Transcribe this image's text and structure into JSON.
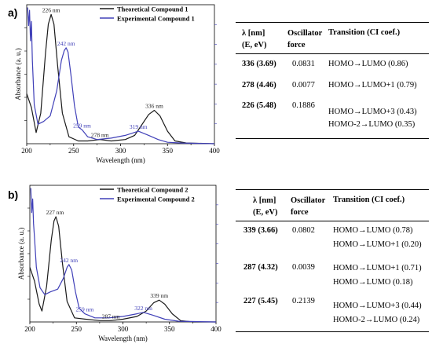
{
  "panels": [
    {
      "label": "a)",
      "chart_data": {
        "type": "line",
        "xlabel": "Wavelength (nm)",
        "ylabel": "Absorbance (a. u.)",
        "xlim": [
          200,
          400
        ],
        "x_ticks": [
          200,
          250,
          300,
          350,
          400
        ],
        "legend_position": "top-right",
        "series": [
          {
            "name": "Theoretical Compound 1",
            "color": "#1a1a1a",
            "points": [
              [
                200,
                0.36
              ],
              [
                205,
                0.26
              ],
              [
                210,
                0.08
              ],
              [
                215,
                0.22
              ],
              [
                220,
                0.65
              ],
              [
                223,
                0.86
              ],
              [
                226,
                0.93
              ],
              [
                229,
                0.86
              ],
              [
                233,
                0.56
              ],
              [
                238,
                0.22
              ],
              [
                245,
                0.05
              ],
              [
                255,
                0.02
              ],
              [
                265,
                0.02
              ],
              [
                278,
                0.03
              ],
              [
                290,
                0.02
              ],
              [
                305,
                0.03
              ],
              [
                315,
                0.06
              ],
              [
                322,
                0.13
              ],
              [
                330,
                0.21
              ],
              [
                336,
                0.24
              ],
              [
                342,
                0.2
              ],
              [
                350,
                0.09
              ],
              [
                358,
                0.02
              ],
              [
                370,
                0.005
              ],
              [
                400,
                0.0
              ]
            ]
          },
          {
            "name": "Experimental Compound 1",
            "color": "#4040b8",
            "points": [
              [
                201,
                0.98
              ],
              [
                202,
                0.85
              ],
              [
                203,
                0.96
              ],
              [
                204,
                0.74
              ],
              [
                205,
                0.88
              ],
              [
                206,
                0.6
              ],
              [
                208,
                0.28
              ],
              [
                212,
                0.14
              ],
              [
                218,
                0.16
              ],
              [
                225,
                0.2
              ],
              [
                232,
                0.38
              ],
              [
                237,
                0.6
              ],
              [
                240,
                0.67
              ],
              [
                242,
                0.69
              ],
              [
                244,
                0.66
              ],
              [
                247,
                0.5
              ],
              [
                251,
                0.27
              ],
              [
                255,
                0.12
              ],
              [
                259,
                0.1
              ],
              [
                265,
                0.05
              ],
              [
                275,
                0.03
              ],
              [
                290,
                0.04
              ],
              [
                305,
                0.06
              ],
              [
                319,
                0.09
              ],
              [
                330,
                0.06
              ],
              [
                340,
                0.03
              ],
              [
                350,
                0.01
              ],
              [
                365,
                0.005
              ],
              [
                400,
                0.0
              ]
            ]
          }
        ],
        "annotations": [
          {
            "text": "226 nm",
            "x": 226,
            "y": 0.93,
            "series": 0
          },
          {
            "text": "242 nm",
            "x": 242,
            "y": 0.69,
            "series": 1
          },
          {
            "text": "259 nm",
            "x": 259,
            "y": 0.1,
            "series": 1
          },
          {
            "text": "278 nm",
            "x": 278,
            "y": 0.03,
            "series": 0
          },
          {
            "text": "319 nm",
            "x": 319,
            "y": 0.09,
            "series": 1
          },
          {
            "text": "336 nm",
            "x": 336,
            "y": 0.24,
            "series": 0
          }
        ]
      },
      "table": {
        "headers": [
          "λ [nm]\n(E, eV)",
          "Oscillator\nforce",
          "Transition (CI coef.)"
        ],
        "rows": [
          {
            "lambda": "336 (3.69)",
            "osc": "0.0831",
            "transitions": [
              "HOMO→LUMO (0.86)"
            ]
          },
          {
            "lambda": "278 (4.46)",
            "osc": "0.0077",
            "transitions": [
              "HOMO→LUMO+1 (0.79)"
            ]
          },
          {
            "lambda": "226 (5.48)",
            "osc": "0.1886",
            "transitions": [
              "HOMO→LUMO+3 (0.43)",
              "HOMO-2→LUMO (0.35)"
            ]
          }
        ]
      }
    },
    {
      "label": "b)",
      "chart_data": {
        "type": "line",
        "xlabel": "Wavelength (nm)",
        "ylabel": "Absorbance (a. u.)",
        "xlim": [
          200,
          400
        ],
        "x_ticks": [
          200,
          250,
          300,
          350,
          400
        ],
        "legend_position": "top-right",
        "series": [
          {
            "name": "Theoretical Compound 2",
            "color": "#1a1a1a",
            "points": [
              [
                200,
                0.4
              ],
              [
                205,
                0.3
              ],
              [
                210,
                0.13
              ],
              [
                213,
                0.08
              ],
              [
                218,
                0.26
              ],
              [
                223,
                0.6
              ],
              [
                226,
                0.74
              ],
              [
                228,
                0.77
              ],
              [
                231,
                0.7
              ],
              [
                235,
                0.43
              ],
              [
                240,
                0.15
              ],
              [
                248,
                0.03
              ],
              [
                260,
                0.02
              ],
              [
                275,
                0.01
              ],
              [
                287,
                0.01
              ],
              [
                300,
                0.02
              ],
              [
                315,
                0.04
              ],
              [
                325,
                0.08
              ],
              [
                333,
                0.14
              ],
              [
                339,
                0.16
              ],
              [
                345,
                0.13
              ],
              [
                353,
                0.06
              ],
              [
                362,
                0.01
              ],
              [
                375,
                0.0
              ],
              [
                400,
                0.0
              ]
            ]
          },
          {
            "name": "Experimental Compound 2",
            "color": "#4040b8",
            "points": [
              [
                201,
                0.98
              ],
              [
                202,
                0.8
              ],
              [
                203,
                0.9
              ],
              [
                204,
                0.72
              ],
              [
                205,
                0.62
              ],
              [
                207,
                0.4
              ],
              [
                211,
                0.25
              ],
              [
                216,
                0.2
              ],
              [
                222,
                0.22
              ],
              [
                230,
                0.24
              ],
              [
                236,
                0.32
              ],
              [
                240,
                0.4
              ],
              [
                242,
                0.42
              ],
              [
                245,
                0.38
              ],
              [
                249,
                0.22
              ],
              [
                253,
                0.1
              ],
              [
                259,
                0.06
              ],
              [
                270,
                0.03
              ],
              [
                285,
                0.03
              ],
              [
                300,
                0.04
              ],
              [
                315,
                0.06
              ],
              [
                322,
                0.07
              ],
              [
                332,
                0.05
              ],
              [
                345,
                0.02
              ],
              [
                360,
                0.005
              ],
              [
                400,
                0.0
              ]
            ]
          }
        ],
        "annotations": [
          {
            "text": "227 nm",
            "x": 227,
            "y": 0.77,
            "series": 0
          },
          {
            "text": "242 nm",
            "x": 242,
            "y": 0.42,
            "series": 1
          },
          {
            "text": "259 nm",
            "x": 259,
            "y": 0.06,
            "series": 1
          },
          {
            "text": "287 nm",
            "x": 287,
            "y": 0.01,
            "series": 0
          },
          {
            "text": "322 nm",
            "x": 322,
            "y": 0.07,
            "series": 1
          },
          {
            "text": "339 nm",
            "x": 339,
            "y": 0.16,
            "series": 0
          }
        ]
      },
      "table": {
        "headers": [
          "λ [nm]\n(E, eV)",
          "Oscillator\nforce",
          "Transition (CI coef.)"
        ],
        "rows": [
          {
            "lambda": "339 (3.66)",
            "osc": "0.0802",
            "transitions": [
              "HOMO→LUMO (0.78)",
              "HOMO→LUMO+1 (0.20)"
            ]
          },
          {
            "lambda": "287 (4.32)",
            "osc": "0.0039",
            "transitions": [
              "HOMO→LUMO+1 (0.71)",
              "HOMO→LUMO (0.18)"
            ]
          },
          {
            "lambda": "227 (5.45)",
            "osc": "0.2139",
            "transitions": [
              "HOMO→LUMO+3 (0.44)",
              "HOMO-2→LUMO (0.24)"
            ]
          }
        ]
      }
    }
  ]
}
